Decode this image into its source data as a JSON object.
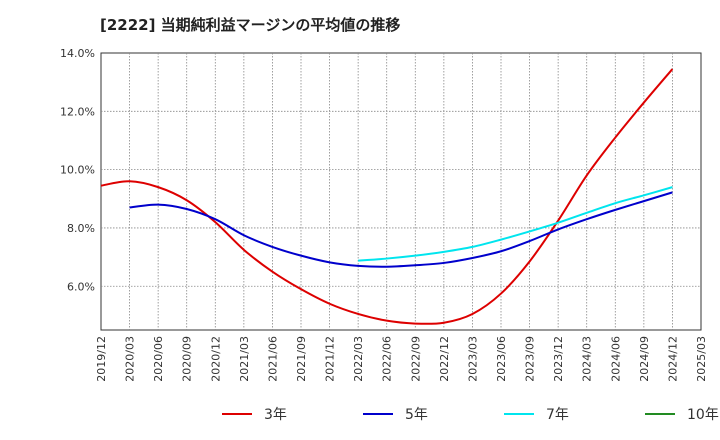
{
  "title": "[2222]  当期純利益マージンの平均値の推移",
  "chart_data": {
    "type": "line",
    "title": "[2222]  当期純利益マージンの平均値の推移",
    "xlabel": "",
    "ylabel": "",
    "x_ticks": [
      "2019/12",
      "2020/03",
      "2020/06",
      "2020/09",
      "2020/12",
      "2021/03",
      "2021/06",
      "2021/09",
      "2021/12",
      "2022/03",
      "2022/06",
      "2022/09",
      "2022/12",
      "2023/03",
      "2023/06",
      "2023/09",
      "2023/12",
      "2024/03",
      "2024/06",
      "2024/09",
      "2024/12",
      "2025/03"
    ],
    "y_ticks": [
      "6.0%",
      "8.0%",
      "10.0%",
      "12.0%",
      "14.0%"
    ],
    "y_tick_values": [
      6,
      8,
      10,
      12,
      14
    ],
    "ylim": [
      4.5,
      14.0
    ],
    "xlim": [
      "2019/12",
      "2025/03"
    ],
    "grid": true,
    "legend_position": "bottom",
    "series": [
      {
        "name": "3年",
        "color": "#dd0000",
        "x": [
          "2019/12",
          "2020/03",
          "2020/06",
          "2020/09",
          "2020/12",
          "2021/03",
          "2021/06",
          "2021/09",
          "2021/12",
          "2022/03",
          "2022/06",
          "2022/09",
          "2022/12",
          "2023/03",
          "2023/06",
          "2023/09",
          "2023/12",
          "2024/03",
          "2024/06",
          "2024/09",
          "2024/12"
        ],
        "values": [
          9.45,
          9.6,
          9.4,
          8.95,
          8.2,
          7.25,
          6.5,
          5.9,
          5.4,
          5.05,
          4.82,
          4.72,
          4.75,
          5.05,
          5.75,
          6.85,
          8.25,
          9.8,
          11.1,
          12.3,
          13.45
        ]
      },
      {
        "name": "5年",
        "color": "#0000cc",
        "x": [
          "2020/03",
          "2020/06",
          "2020/09",
          "2020/12",
          "2021/03",
          "2021/06",
          "2021/09",
          "2021/12",
          "2022/03",
          "2022/06",
          "2022/09",
          "2022/12",
          "2023/03",
          "2023/06",
          "2023/09",
          "2023/12",
          "2024/03",
          "2024/06",
          "2024/09",
          "2024/12"
        ],
        "values": [
          8.7,
          8.8,
          8.65,
          8.3,
          7.75,
          7.35,
          7.05,
          6.82,
          6.7,
          6.67,
          6.72,
          6.8,
          6.97,
          7.2,
          7.55,
          7.95,
          8.3,
          8.62,
          8.92,
          9.22
        ]
      },
      {
        "name": "7年",
        "color": "#00e5ee",
        "x": [
          "2022/03",
          "2022/06",
          "2022/09",
          "2022/12",
          "2023/03",
          "2023/06",
          "2023/09",
          "2023/12",
          "2024/03",
          "2024/06",
          "2024/09",
          "2024/12"
        ],
        "values": [
          6.88,
          6.95,
          7.05,
          7.18,
          7.35,
          7.6,
          7.88,
          8.18,
          8.52,
          8.85,
          9.12,
          9.4
        ]
      },
      {
        "name": "10年",
        "color": "#228b22",
        "x": [],
        "values": []
      }
    ]
  }
}
